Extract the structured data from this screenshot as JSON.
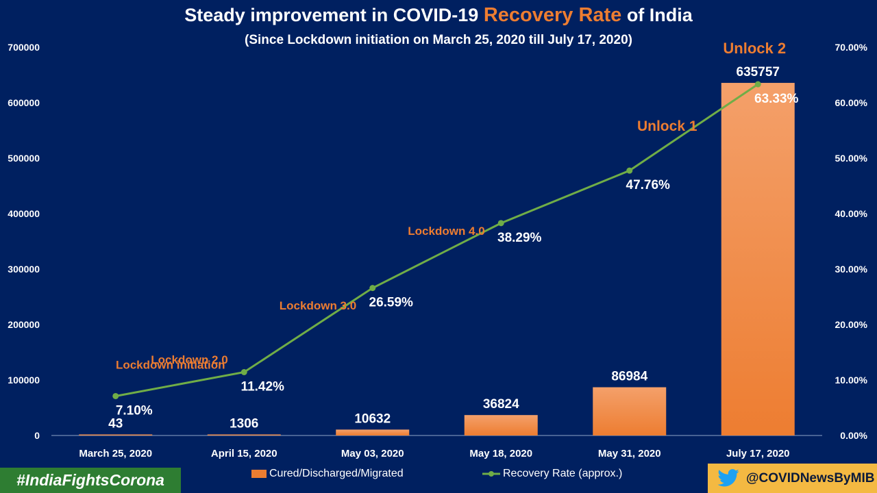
{
  "title": {
    "part1": "Steady  improvement  in COVID-19 ",
    "highlight": "Recovery Rate",
    "part2": "  of  India"
  },
  "subtitle": "(Since  Lockdown initiation on March 25, 2020  till July 17, 2020)",
  "hashtag": "#IndiaFightsCorona",
  "handle": "@COVIDNewsByMIB",
  "colors": {
    "background": "#002060",
    "bar": "#ED7D31",
    "line": "#70AD47",
    "phase_label": "#ED7D31",
    "text": "#FFFFFF"
  },
  "chart_data": {
    "type": "bar",
    "categories": [
      "March 25, 2020",
      "April 15, 2020",
      "May 03, 2020",
      "May 18, 2020",
      "May 31, 2020",
      "July 17, 2020"
    ],
    "series": [
      {
        "name": "Cured/Discharged/Migrated",
        "type": "bar",
        "axis": "left",
        "values": [
          43,
          1306,
          10632,
          36824,
          86984,
          635757
        ],
        "labels": [
          "43",
          "1306",
          "10632",
          "36824",
          "86984",
          "635757"
        ]
      },
      {
        "name": "Recovery Rate (approx.)",
        "type": "line",
        "axis": "right",
        "values": [
          7.1,
          11.42,
          26.59,
          38.29,
          47.76,
          63.33
        ],
        "labels": [
          "7.10%",
          "11.42%",
          "26.59%",
          "38.29%",
          "47.76%",
          "63.33%"
        ]
      }
    ],
    "phases": [
      "Lockdown initiation",
      "Lockdown 2.0",
      "Lockdown 3.0",
      "Lockdown 4.0",
      "Unlock 1",
      "Unlock 2"
    ],
    "y_left": {
      "range": [
        0,
        700000
      ],
      "ticks": [
        "0",
        "100000",
        "200000",
        "300000",
        "400000",
        "500000",
        "600000",
        "700000"
      ]
    },
    "y_right": {
      "range": [
        0,
        70
      ],
      "ticks": [
        "0.00%",
        "10.00%",
        "20.00%",
        "30.00%",
        "40.00%",
        "50.00%",
        "60.00%",
        "70.00%"
      ]
    },
    "grid": false,
    "legend_position": "bottom"
  }
}
